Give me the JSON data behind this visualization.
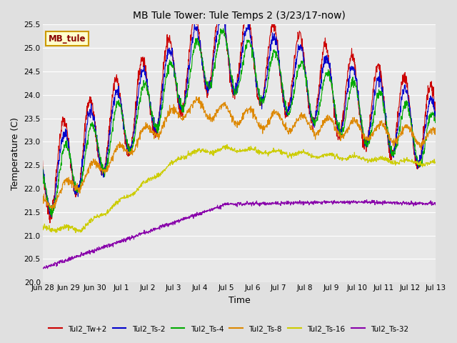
{
  "title": "MB Tule Tower: Tule Temps 2 (3/23/17-now)",
  "xlabel": "Time",
  "ylabel": "Temperature (C)",
  "ylim": [
    20.0,
    25.5
  ],
  "yticks": [
    20.0,
    20.5,
    21.0,
    21.5,
    22.0,
    22.5,
    23.0,
    23.5,
    24.0,
    24.5,
    25.0,
    25.5
  ],
  "bg_color": "#e0e0e0",
  "plot_bg_color": "#e8e8e8",
  "grid_color": "#ffffff",
  "legend_entries": [
    "Tul2_Tw+2",
    "Tul2_Ts-2",
    "Tul2_Ts-4",
    "Tul2_Ts-8",
    "Tul2_Ts-16",
    "Tul2_Ts-32"
  ],
  "line_colors": [
    "#cc0000",
    "#0000cc",
    "#00aa00",
    "#dd8800",
    "#cccc00",
    "#8800aa"
  ],
  "watermark_text": "MB_tule",
  "watermark_bg": "#ffffcc",
  "watermark_border": "#cc9900",
  "watermark_text_color": "#880000",
  "x_tick_labels": [
    "Jun 28",
    "Jun 29",
    "Jun 30",
    "Jul 1",
    "Jul 2",
    "Jul 3",
    "Jul 4",
    "Jul 5",
    "Jul 6",
    "Jul 7",
    "Jul 8",
    "Jul 9",
    "Jul 10",
    "Jul 11",
    "Jul 12",
    "Jul 13"
  ]
}
